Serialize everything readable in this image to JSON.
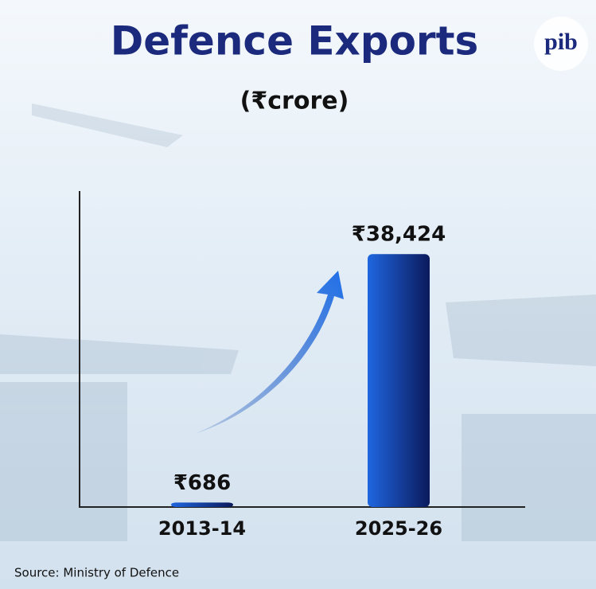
{
  "chart_data": {
    "type": "bar",
    "title": "Defence Exports",
    "subtitle": "(₹crore)",
    "categories": [
      "2013-14",
      "2025-26"
    ],
    "values": [
      686,
      38424
    ],
    "value_labels": [
      "₹686",
      "₹38,424"
    ],
    "color": "#1f66e0",
    "ylim": [
      0,
      48000
    ],
    "source": "Source: Ministry of Defence",
    "logo": "pib"
  }
}
